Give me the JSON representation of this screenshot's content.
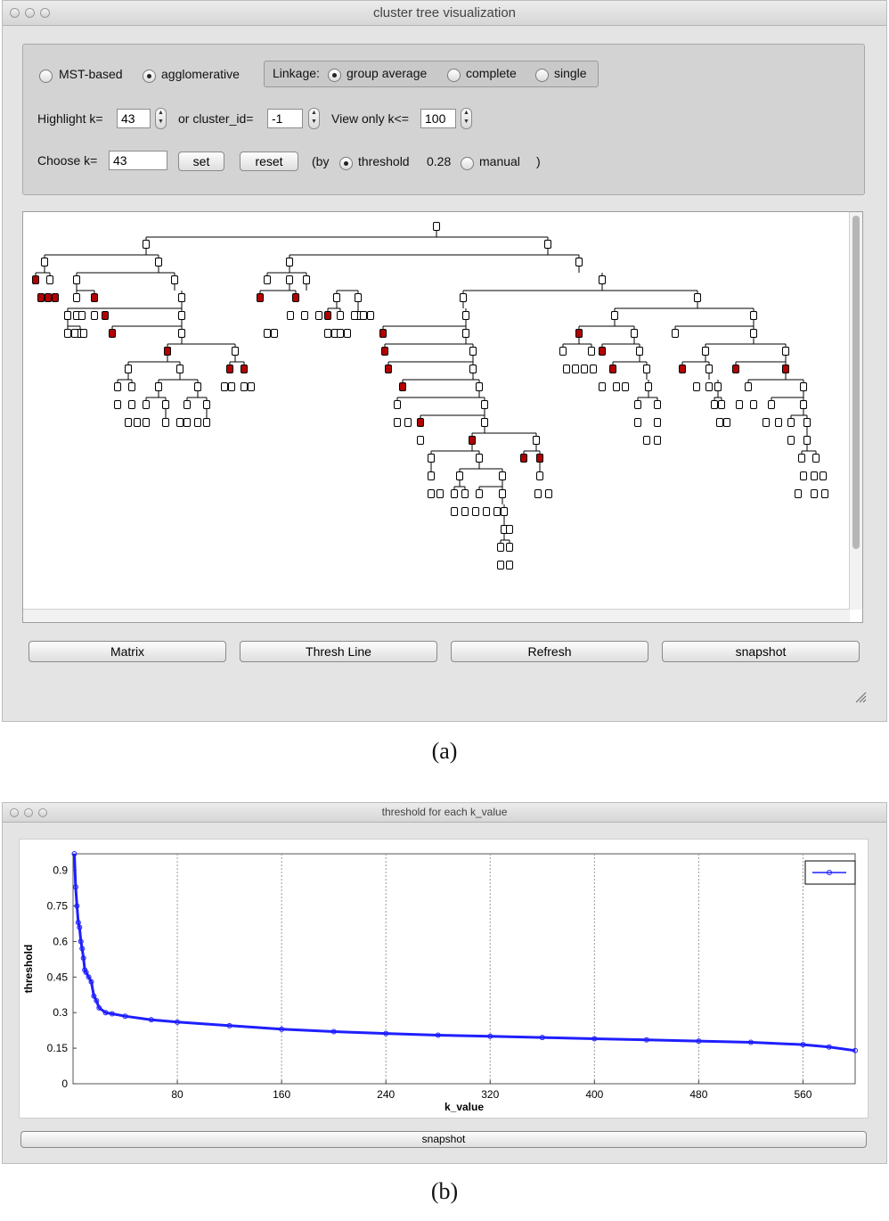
{
  "window_a": {
    "title": "cluster tree visualization",
    "method_mst": "MST-based",
    "method_agglomerative": "agglomerative",
    "linkage_label": "Linkage:",
    "linkage_group_average": "group average",
    "linkage_complete": "complete",
    "linkage_single": "single",
    "highlight_label": "Highlight k=",
    "highlight_value": "43",
    "cluster_id_label": "or cluster_id=",
    "cluster_id_value": "-1",
    "view_only_label": "View only k<=",
    "view_only_value": "100",
    "choose_label": "Choose k=",
    "choose_value": "43",
    "set_label": "set",
    "reset_label": "reset",
    "by_label": "(by",
    "threshold_label": "threshold",
    "threshold_value": "0.28",
    "manual_label": "manual",
    "close_paren": ")",
    "buttons": {
      "matrix": "Matrix",
      "thresh_line": "Thresh Line",
      "refresh": "Refresh",
      "snapshot": "snapshot"
    }
  },
  "caption_a": "(a)",
  "window_b": {
    "title": "threshold for each k_value",
    "snapshot": "snapshot"
  },
  "caption_b": "(b)",
  "chart_data": {
    "type": "line",
    "title": "threshold for each k_value",
    "xlabel": "k_value",
    "ylabel": "threshold",
    "xlim": [
      0,
      600
    ],
    "ylim": [
      0,
      0.97
    ],
    "x_ticks": [
      80,
      160,
      240,
      320,
      400,
      480,
      560
    ],
    "y_ticks": [
      0,
      0.15,
      0.3,
      0.45,
      0.6,
      0.75,
      0.9
    ],
    "grid": "vertical dotted",
    "legend_position": "top-right",
    "series": [
      {
        "name": "",
        "color": "#1f1fff",
        "x": [
          1,
          2,
          3,
          4,
          5,
          6,
          7,
          8,
          9,
          10,
          12,
          14,
          16,
          18,
          20,
          25,
          30,
          40,
          60,
          80,
          120,
          160,
          200,
          240,
          280,
          320,
          360,
          400,
          440,
          480,
          520,
          560,
          580,
          600
        ],
        "y": [
          0.97,
          0.83,
          0.75,
          0.68,
          0.66,
          0.6,
          0.57,
          0.53,
          0.48,
          0.47,
          0.45,
          0.43,
          0.37,
          0.35,
          0.32,
          0.3,
          0.295,
          0.285,
          0.27,
          0.26,
          0.245,
          0.23,
          0.22,
          0.212,
          0.205,
          0.2,
          0.195,
          0.19,
          0.185,
          0.18,
          0.175,
          0.165,
          0.155,
          0.14
        ]
      }
    ]
  }
}
